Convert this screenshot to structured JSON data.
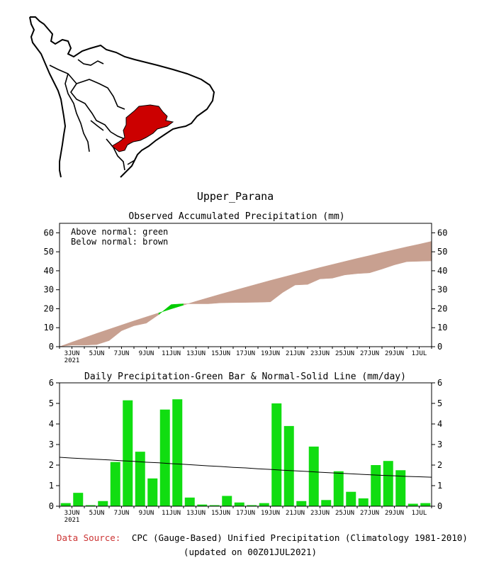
{
  "region_name": "Upper_Parana",
  "colors": {
    "above_normal": "#00cc00",
    "below_normal": "#c8a090",
    "region_fill": "#cc0000",
    "source_label": "#cc3333",
    "bar": "#11dd11"
  },
  "chart_data": [
    {
      "type": "area",
      "title": "Observed Accumulated Precipitation (mm)",
      "legend": [
        "Above normal: green",
        "Below normal: brown"
      ],
      "x": [
        0,
        1,
        2,
        3,
        4,
        5,
        6,
        7,
        8,
        9,
        10,
        11,
        12,
        13,
        14,
        15,
        16,
        17,
        18,
        19,
        20,
        21,
        22,
        23,
        24,
        25,
        26,
        27,
        28,
        29,
        30
      ],
      "normal": [
        0,
        2.4,
        4.7,
        7.0,
        9.2,
        11.4,
        13.6,
        15.7,
        17.8,
        19.9,
        21.9,
        23.9,
        25.8,
        27.7,
        29.5,
        31.3,
        33.1,
        34.9,
        36.6,
        38.3,
        40.0,
        41.7,
        43.3,
        44.9,
        46.5,
        48.0,
        49.6,
        51.1,
        52.6,
        54.0,
        55.5
      ],
      "observed": [
        0.1,
        0.8,
        0.8,
        1.1,
        3.2,
        8.4,
        11.0,
        12.4,
        16.9,
        22.2,
        22.6,
        22.6,
        22.6,
        23.1,
        23.2,
        23.3,
        23.4,
        23.6,
        28.6,
        32.5,
        32.8,
        35.7,
        36.1,
        37.8,
        38.5,
        38.9,
        40.9,
        43.1,
        44.8,
        45.0,
        45.2
      ],
      "xticks": [
        "3JUN",
        "5JUN",
        "7JUN",
        "9JUN",
        "11JUN",
        "13JUN",
        "15JUN",
        "17JUN",
        "19JUN",
        "21JUN",
        "23JUN",
        "25JUN",
        "27JUN",
        "29JUN",
        "1JUL"
      ],
      "year_label": "2021",
      "yticks": [
        "0",
        "10",
        "20",
        "30",
        "40",
        "50",
        "60"
      ],
      "ylim": [
        0,
        65
      ]
    },
    {
      "type": "bar",
      "title": "Daily Precipitation-Green Bar & Normal-Solid Line (mm/day)",
      "x": [
        0,
        1,
        2,
        3,
        4,
        5,
        6,
        7,
        8,
        9,
        10,
        11,
        12,
        13,
        14,
        15,
        16,
        17,
        18,
        19,
        20,
        21,
        22,
        23,
        24,
        25,
        26,
        27,
        28,
        29,
        30
      ],
      "values": [
        0.15,
        0.65,
        0.05,
        0.25,
        2.15,
        5.15,
        2.65,
        1.35,
        4.7,
        5.2,
        0.42,
        0.08,
        0.05,
        0.5,
        0.18,
        0.05,
        0.15,
        5.0,
        3.9,
        0.25,
        2.9,
        0.3,
        1.7,
        0.7,
        0.38,
        2.0,
        2.2,
        1.75,
        0.12,
        0.15,
        0.0
      ],
      "normal": [
        2.38,
        2.34,
        2.31,
        2.28,
        2.25,
        2.21,
        2.18,
        2.14,
        2.11,
        2.07,
        2.04,
        2.0,
        1.96,
        1.93,
        1.89,
        1.86,
        1.82,
        1.79,
        1.75,
        1.72,
        1.69,
        1.65,
        1.62,
        1.59,
        1.56,
        1.53,
        1.5,
        1.48,
        1.45,
        1.43,
        1.41
      ],
      "xticks": [
        "3JUN",
        "5JUN",
        "7JUN",
        "9JUN",
        "11JUN",
        "13JUN",
        "15JUN",
        "17JUN",
        "19JUN",
        "21JUN",
        "23JUN",
        "25JUN",
        "27JUN",
        "29JUN",
        "1JUL"
      ],
      "year_label": "2021",
      "yticks": [
        "0",
        "1",
        "2",
        "3",
        "4",
        "5",
        "6"
      ],
      "ylim": [
        0,
        6
      ]
    }
  ],
  "footer": {
    "source_label": "Data Source:",
    "source_text": "CPC (Gauge-Based) Unified Precipitation (Climatology 1981-2010)",
    "updated": "(updated on 00Z01JUL2021)"
  }
}
